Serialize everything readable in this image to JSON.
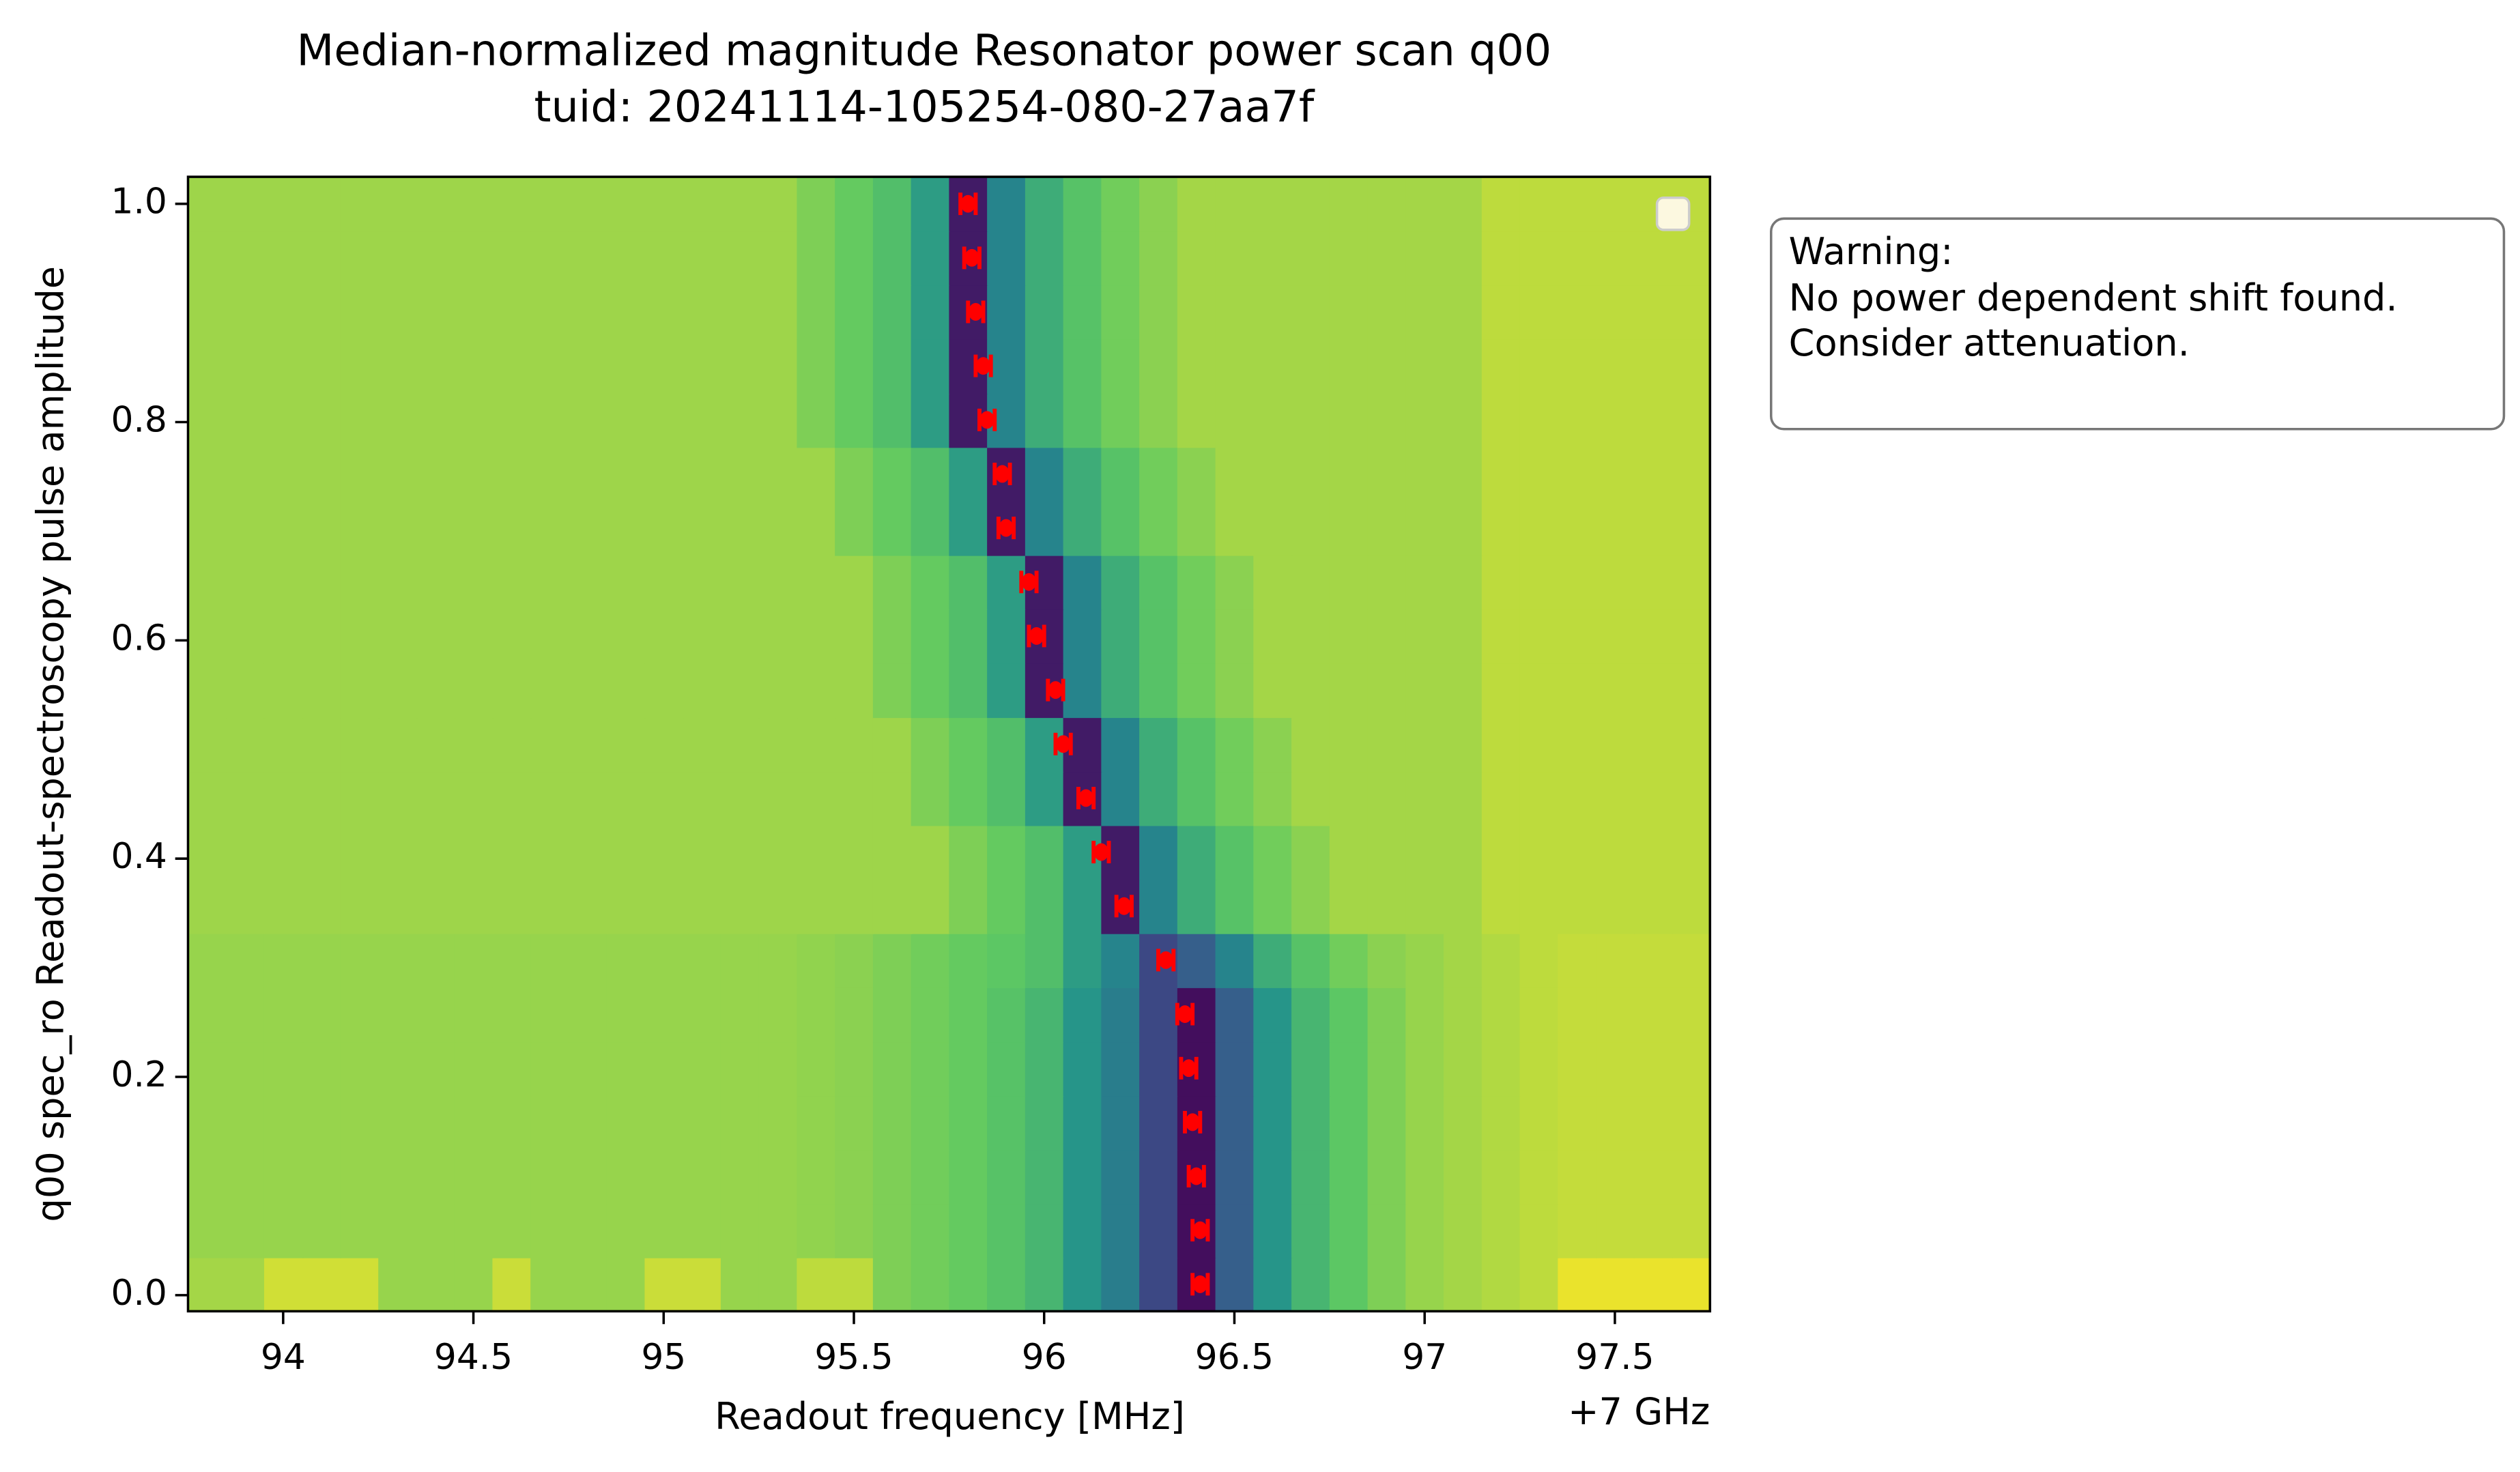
{
  "chart_data": {
    "type": "heatmap",
    "title": "Median-normalized magnitude Resonator power scan q00",
    "subtitle": "tuid: 20241114-105254-080-27aa7f",
    "x_label": "Readout frequency [MHz]",
    "x_offset_label": "+7 GHz",
    "y_label": "q00 spec_ro Readout-spectroscopy pulse amplitude",
    "annotation": [
      "Warning:",
      "No power dependent shift found.",
      "Consider attenuation."
    ],
    "colormap": [
      "#440154",
      "#3b528b",
      "#21918c",
      "#5ec962",
      "#fde725"
    ],
    "xlim": [
      93.75,
      97.75
    ],
    "ylim": [
      -0.01475,
      1.02475
    ],
    "xticks": [
      94,
      94.5,
      95,
      95.5,
      96,
      96.5,
      97,
      97.5
    ],
    "yticks": [
      {
        "value": 0,
        "label": "0.0"
      },
      0.2,
      0.4,
      0.6,
      0.8,
      {
        "value": 1,
        "label": "1.0"
      }
    ],
    "x": [
      93.8,
      93.9,
      94.0,
      94.1,
      94.2,
      94.3,
      94.4,
      94.5,
      94.6,
      94.7,
      94.8,
      94.9,
      95.0,
      95.1,
      95.2,
      95.3,
      95.4,
      95.5,
      95.6,
      95.7,
      95.8,
      95.9,
      96.0,
      96.1,
      96.2,
      96.3,
      96.4,
      96.5,
      96.6,
      96.7,
      96.8,
      96.9,
      97.0,
      97.1,
      97.2,
      97.3,
      97.4,
      97.5,
      97.6,
      97.7
    ],
    "y": [
      0.01,
      0.0595,
      0.109,
      0.1585,
      0.208,
      0.2575,
      0.307,
      0.3565,
      0.406,
      0.4555,
      0.505,
      0.5545,
      0.604,
      0.6535,
      0.703,
      0.7525,
      0.802,
      0.8515,
      0.901,
      0.9505,
      1.0
    ],
    "z": [
      [
        0.86,
        0.86,
        0.93,
        0.93,
        0.93,
        0.84,
        0.84,
        0.84,
        0.92,
        0.84,
        0.84,
        0.84,
        0.92,
        0.92,
        0.84,
        0.84,
        0.9,
        0.9,
        0.8,
        0.78,
        0.76,
        0.72,
        0.66,
        0.52,
        0.42,
        0.22,
        0.04,
        0.3,
        0.52,
        0.66,
        0.74,
        0.8,
        0.84,
        0.86,
        0.88,
        0.9,
        0.97,
        0.97,
        0.97,
        0.97
      ],
      [
        0.84,
        0.84,
        0.84,
        0.84,
        0.84,
        0.84,
        0.84,
        0.84,
        0.84,
        0.84,
        0.84,
        0.84,
        0.84,
        0.84,
        0.84,
        0.84,
        0.83,
        0.82,
        0.8,
        0.78,
        0.76,
        0.72,
        0.66,
        0.52,
        0.42,
        0.22,
        0.04,
        0.3,
        0.52,
        0.66,
        0.74,
        0.8,
        0.84,
        0.86,
        0.88,
        0.9,
        0.91,
        0.91,
        0.91,
        0.91
      ],
      [
        0.84,
        0.84,
        0.84,
        0.84,
        0.84,
        0.84,
        0.84,
        0.84,
        0.84,
        0.84,
        0.84,
        0.84,
        0.84,
        0.84,
        0.84,
        0.84,
        0.83,
        0.82,
        0.8,
        0.78,
        0.76,
        0.72,
        0.66,
        0.52,
        0.42,
        0.22,
        0.04,
        0.3,
        0.52,
        0.66,
        0.74,
        0.8,
        0.84,
        0.86,
        0.88,
        0.9,
        0.91,
        0.91,
        0.91,
        0.91
      ],
      [
        0.84,
        0.84,
        0.84,
        0.84,
        0.84,
        0.84,
        0.84,
        0.84,
        0.84,
        0.84,
        0.84,
        0.84,
        0.84,
        0.84,
        0.84,
        0.84,
        0.83,
        0.82,
        0.8,
        0.78,
        0.76,
        0.72,
        0.66,
        0.52,
        0.42,
        0.22,
        0.04,
        0.3,
        0.52,
        0.66,
        0.74,
        0.8,
        0.84,
        0.86,
        0.88,
        0.9,
        0.91,
        0.91,
        0.91,
        0.91
      ],
      [
        0.84,
        0.84,
        0.84,
        0.84,
        0.84,
        0.84,
        0.84,
        0.84,
        0.84,
        0.84,
        0.84,
        0.84,
        0.84,
        0.84,
        0.84,
        0.84,
        0.83,
        0.82,
        0.8,
        0.78,
        0.76,
        0.72,
        0.66,
        0.52,
        0.42,
        0.22,
        0.04,
        0.3,
        0.52,
        0.66,
        0.74,
        0.8,
        0.84,
        0.86,
        0.88,
        0.9,
        0.91,
        0.91,
        0.91,
        0.91
      ],
      [
        0.84,
        0.84,
        0.84,
        0.84,
        0.84,
        0.84,
        0.84,
        0.84,
        0.84,
        0.84,
        0.84,
        0.84,
        0.84,
        0.84,
        0.84,
        0.84,
        0.83,
        0.82,
        0.8,
        0.78,
        0.76,
        0.72,
        0.66,
        0.52,
        0.42,
        0.22,
        0.04,
        0.3,
        0.52,
        0.66,
        0.74,
        0.8,
        0.84,
        0.86,
        0.88,
        0.9,
        0.91,
        0.91,
        0.91,
        0.91
      ],
      [
        0.84,
        0.84,
        0.84,
        0.84,
        0.84,
        0.84,
        0.84,
        0.84,
        0.84,
        0.84,
        0.84,
        0.84,
        0.84,
        0.84,
        0.84,
        0.84,
        0.83,
        0.82,
        0.8,
        0.78,
        0.76,
        0.74,
        0.7,
        0.55,
        0.45,
        0.22,
        0.3,
        0.45,
        0.62,
        0.72,
        0.78,
        0.82,
        0.84,
        0.86,
        0.88,
        0.9,
        0.91,
        0.91,
        0.91,
        0.91
      ],
      [
        0.85,
        0.85,
        0.85,
        0.85,
        0.85,
        0.85,
        0.85,
        0.85,
        0.85,
        0.85,
        0.85,
        0.85,
        0.85,
        0.85,
        0.85,
        0.85,
        0.85,
        0.85,
        0.85,
        0.85,
        0.8,
        0.76,
        0.7,
        0.55,
        0.08,
        0.45,
        0.62,
        0.72,
        0.78,
        0.82,
        0.86,
        0.86,
        0.86,
        0.86,
        0.9,
        0.9,
        0.9,
        0.9,
        0.9,
        0.9
      ],
      [
        0.85,
        0.85,
        0.85,
        0.85,
        0.85,
        0.85,
        0.85,
        0.85,
        0.85,
        0.85,
        0.85,
        0.85,
        0.85,
        0.85,
        0.85,
        0.85,
        0.85,
        0.85,
        0.85,
        0.85,
        0.8,
        0.76,
        0.7,
        0.55,
        0.08,
        0.45,
        0.62,
        0.72,
        0.78,
        0.82,
        0.86,
        0.86,
        0.86,
        0.86,
        0.9,
        0.9,
        0.9,
        0.9,
        0.9,
        0.9
      ],
      [
        0.85,
        0.85,
        0.85,
        0.85,
        0.85,
        0.85,
        0.85,
        0.85,
        0.85,
        0.85,
        0.85,
        0.85,
        0.85,
        0.85,
        0.85,
        0.85,
        0.85,
        0.85,
        0.85,
        0.8,
        0.76,
        0.7,
        0.55,
        0.08,
        0.45,
        0.62,
        0.72,
        0.78,
        0.82,
        0.86,
        0.86,
        0.86,
        0.86,
        0.86,
        0.9,
        0.9,
        0.9,
        0.9,
        0.9,
        0.9
      ],
      [
        0.85,
        0.85,
        0.85,
        0.85,
        0.85,
        0.85,
        0.85,
        0.85,
        0.85,
        0.85,
        0.85,
        0.85,
        0.85,
        0.85,
        0.85,
        0.85,
        0.85,
        0.85,
        0.85,
        0.8,
        0.76,
        0.7,
        0.55,
        0.08,
        0.45,
        0.62,
        0.72,
        0.78,
        0.82,
        0.86,
        0.86,
        0.86,
        0.86,
        0.86,
        0.9,
        0.9,
        0.9,
        0.9,
        0.9,
        0.9
      ],
      [
        0.85,
        0.85,
        0.85,
        0.85,
        0.85,
        0.85,
        0.85,
        0.85,
        0.85,
        0.85,
        0.85,
        0.85,
        0.85,
        0.85,
        0.85,
        0.85,
        0.85,
        0.85,
        0.8,
        0.76,
        0.7,
        0.55,
        0.08,
        0.45,
        0.62,
        0.72,
        0.78,
        0.82,
        0.86,
        0.86,
        0.86,
        0.86,
        0.86,
        0.86,
        0.9,
        0.9,
        0.9,
        0.9,
        0.9,
        0.9
      ],
      [
        0.85,
        0.85,
        0.85,
        0.85,
        0.85,
        0.85,
        0.85,
        0.85,
        0.85,
        0.85,
        0.85,
        0.85,
        0.85,
        0.85,
        0.85,
        0.85,
        0.85,
        0.85,
        0.8,
        0.76,
        0.7,
        0.55,
        0.08,
        0.45,
        0.62,
        0.72,
        0.78,
        0.82,
        0.86,
        0.86,
        0.86,
        0.86,
        0.86,
        0.86,
        0.9,
        0.9,
        0.9,
        0.9,
        0.9,
        0.9
      ],
      [
        0.85,
        0.85,
        0.85,
        0.85,
        0.85,
        0.85,
        0.85,
        0.85,
        0.85,
        0.85,
        0.85,
        0.85,
        0.85,
        0.85,
        0.85,
        0.85,
        0.85,
        0.85,
        0.8,
        0.76,
        0.7,
        0.55,
        0.08,
        0.45,
        0.62,
        0.72,
        0.78,
        0.82,
        0.86,
        0.86,
        0.86,
        0.86,
        0.86,
        0.86,
        0.9,
        0.9,
        0.9,
        0.9,
        0.9,
        0.9
      ],
      [
        0.85,
        0.85,
        0.85,
        0.85,
        0.85,
        0.85,
        0.85,
        0.85,
        0.85,
        0.85,
        0.85,
        0.85,
        0.85,
        0.85,
        0.85,
        0.85,
        0.85,
        0.8,
        0.76,
        0.7,
        0.55,
        0.08,
        0.45,
        0.62,
        0.72,
        0.78,
        0.82,
        0.86,
        0.86,
        0.86,
        0.86,
        0.86,
        0.86,
        0.86,
        0.9,
        0.9,
        0.9,
        0.9,
        0.9,
        0.9
      ],
      [
        0.85,
        0.85,
        0.85,
        0.85,
        0.85,
        0.85,
        0.85,
        0.85,
        0.85,
        0.85,
        0.85,
        0.85,
        0.85,
        0.85,
        0.85,
        0.85,
        0.85,
        0.8,
        0.76,
        0.7,
        0.55,
        0.08,
        0.45,
        0.62,
        0.72,
        0.78,
        0.82,
        0.86,
        0.86,
        0.86,
        0.86,
        0.86,
        0.86,
        0.86,
        0.9,
        0.9,
        0.9,
        0.9,
        0.9,
        0.9
      ],
      [
        0.85,
        0.85,
        0.85,
        0.85,
        0.85,
        0.85,
        0.85,
        0.85,
        0.85,
        0.85,
        0.85,
        0.85,
        0.85,
        0.85,
        0.85,
        0.85,
        0.8,
        0.76,
        0.7,
        0.55,
        0.08,
        0.45,
        0.62,
        0.72,
        0.78,
        0.82,
        0.86,
        0.86,
        0.86,
        0.86,
        0.86,
        0.86,
        0.86,
        0.86,
        0.9,
        0.9,
        0.9,
        0.9,
        0.9,
        0.9
      ],
      [
        0.85,
        0.85,
        0.85,
        0.85,
        0.85,
        0.85,
        0.85,
        0.85,
        0.85,
        0.85,
        0.85,
        0.85,
        0.85,
        0.85,
        0.85,
        0.85,
        0.8,
        0.76,
        0.7,
        0.55,
        0.08,
        0.45,
        0.62,
        0.72,
        0.78,
        0.82,
        0.86,
        0.86,
        0.86,
        0.86,
        0.86,
        0.86,
        0.86,
        0.86,
        0.9,
        0.9,
        0.9,
        0.9,
        0.9,
        0.9
      ],
      [
        0.85,
        0.85,
        0.85,
        0.85,
        0.85,
        0.85,
        0.85,
        0.85,
        0.85,
        0.85,
        0.85,
        0.85,
        0.85,
        0.85,
        0.85,
        0.85,
        0.8,
        0.76,
        0.7,
        0.55,
        0.08,
        0.45,
        0.62,
        0.72,
        0.78,
        0.82,
        0.86,
        0.86,
        0.86,
        0.86,
        0.86,
        0.86,
        0.86,
        0.86,
        0.9,
        0.9,
        0.9,
        0.9,
        0.9,
        0.9
      ],
      [
        0.85,
        0.85,
        0.85,
        0.85,
        0.85,
        0.85,
        0.85,
        0.85,
        0.85,
        0.85,
        0.85,
        0.85,
        0.85,
        0.85,
        0.85,
        0.85,
        0.8,
        0.76,
        0.7,
        0.55,
        0.08,
        0.45,
        0.62,
        0.72,
        0.78,
        0.82,
        0.86,
        0.86,
        0.86,
        0.86,
        0.86,
        0.86,
        0.86,
        0.86,
        0.9,
        0.9,
        0.9,
        0.9,
        0.9,
        0.9
      ],
      [
        0.85,
        0.85,
        0.85,
        0.85,
        0.85,
        0.85,
        0.85,
        0.85,
        0.85,
        0.85,
        0.85,
        0.85,
        0.85,
        0.85,
        0.85,
        0.85,
        0.8,
        0.76,
        0.7,
        0.55,
        0.08,
        0.45,
        0.62,
        0.72,
        0.78,
        0.82,
        0.86,
        0.86,
        0.86,
        0.86,
        0.86,
        0.86,
        0.86,
        0.86,
        0.9,
        0.9,
        0.9,
        0.9,
        0.9,
        0.9
      ]
    ],
    "points": {
      "color": "#ff0000",
      "x": [
        96.41,
        96.41,
        96.4,
        96.39,
        96.38,
        96.37,
        96.32,
        96.21,
        96.15,
        96.11,
        96.05,
        96.03,
        95.98,
        95.96,
        95.9,
        95.89,
        95.85,
        95.84,
        95.82,
        95.81,
        95.8
      ],
      "xerr": [
        0.02,
        0.02,
        0.02,
        0.02,
        0.02,
        0.02,
        0.02,
        0.02,
        0.02,
        0.02,
        0.02,
        0.02,
        0.02,
        0.02,
        0.02,
        0.02,
        0.02,
        0.02,
        0.02,
        0.02,
        0.02
      ]
    }
  }
}
